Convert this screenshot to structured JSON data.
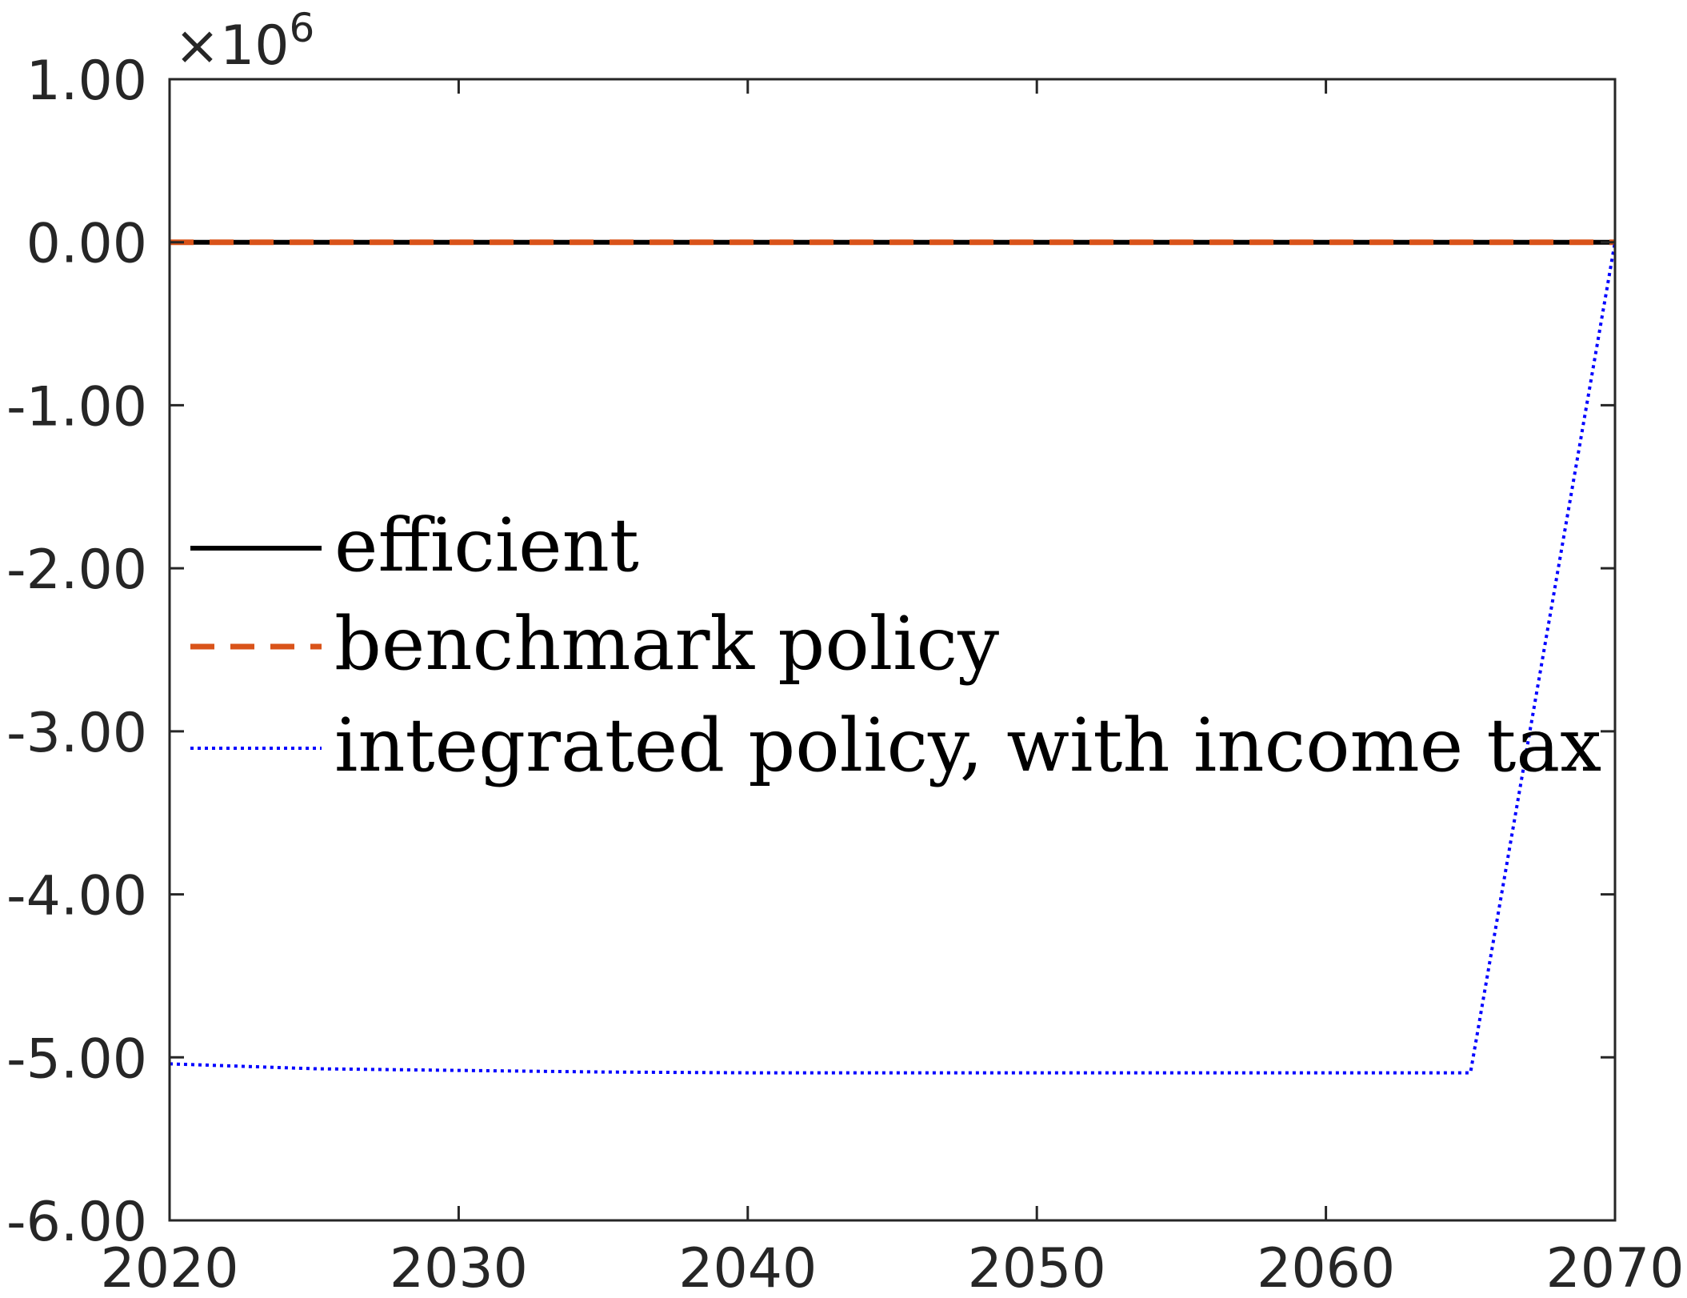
{
  "chart_data": {
    "type": "line",
    "title": "",
    "xlabel": "",
    "ylabel": "",
    "xlim": [
      2020,
      2070
    ],
    "ylim": [
      -6.0,
      1.0
    ],
    "y_exponent_label": "×10",
    "y_exponent_power": "6",
    "xticks": [
      2020,
      2030,
      2040,
      2050,
      2060,
      2070
    ],
    "xtick_labels": [
      "2020",
      "2030",
      "2040",
      "2050",
      "2060",
      "2070"
    ],
    "yticks": [
      1.0,
      0.0,
      -1.0,
      -2.0,
      -3.0,
      -4.0,
      -5.0,
      -6.0
    ],
    "ytick_labels": [
      "1.00",
      "0.00",
      "-1.00",
      "-2.00",
      "-3.00",
      "-4.00",
      "-5.00",
      "-6.00"
    ],
    "grid": false,
    "legend_position": "center-left",
    "series": [
      {
        "name": "efficient",
        "color": "#000000",
        "style": "solid",
        "x": [
          2020,
          2030,
          2040,
          2050,
          2060,
          2070
        ],
        "y": [
          0,
          0,
          0,
          0,
          0,
          0
        ]
      },
      {
        "name": "benchmark policy",
        "color": "#D95319",
        "style": "dashed",
        "x": [
          2020,
          2030,
          2040,
          2050,
          2060,
          2070
        ],
        "y": [
          0,
          0,
          0,
          0,
          0,
          0
        ]
      },
      {
        "name": "integrated policy, with income tax",
        "color": "#0000FF",
        "style": "dotted",
        "x": [
          2020,
          2025,
          2030,
          2035,
          2040,
          2045,
          2050,
          2055,
          2060,
          2065,
          2070
        ],
        "y": [
          -5.04,
          -5.07,
          -5.08,
          -5.09,
          -5.095,
          -5.095,
          -5.095,
          -5.095,
          -5.095,
          -5.095,
          0.0
        ]
      }
    ]
  }
}
